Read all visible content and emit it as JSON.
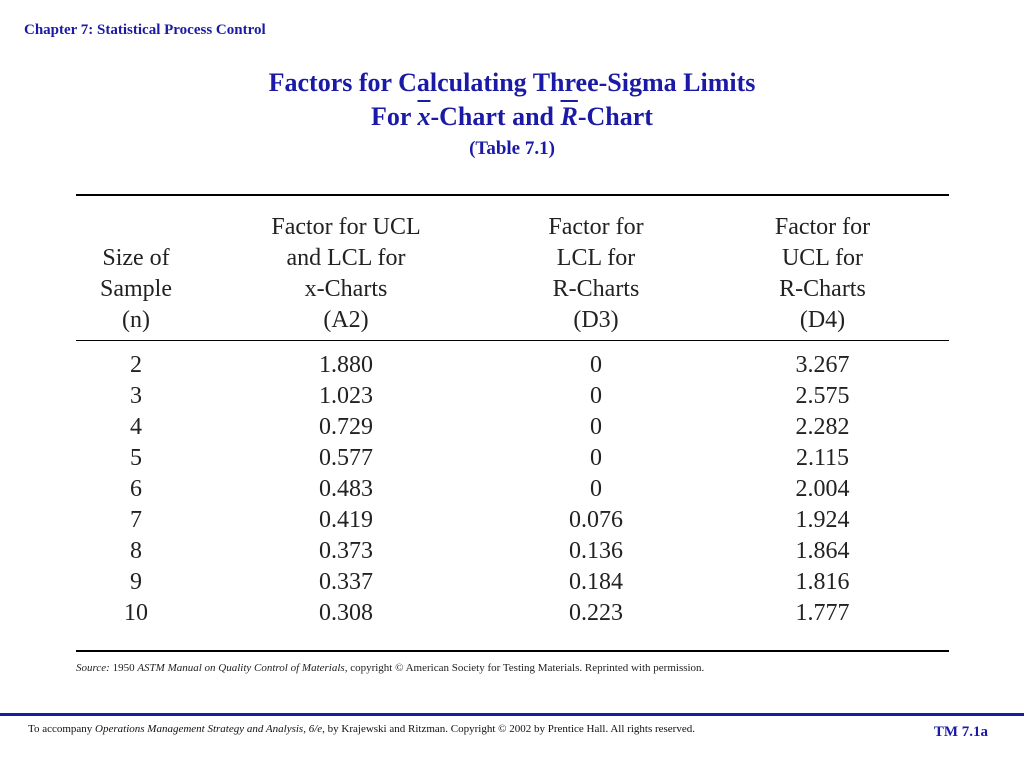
{
  "header": {
    "chapter": "Chapter 7: Statistical Process Control",
    "title_line1": "Factors for Calculating Three-Sigma Limits",
    "title_for": "For ",
    "xbar": "x",
    "title_mid": "-Chart and ",
    "rbar": "R",
    "title_end": "-Chart",
    "table_ref": "(Table 7.1)"
  },
  "table": {
    "headers": [
      [
        "Size of",
        "Sample",
        "(n)"
      ],
      [
        "Factor for UCL",
        "and LCL for",
        "x-Charts",
        "(A2)"
      ],
      [
        "Factor for",
        "LCL for",
        "R-Charts",
        "(D3)"
      ],
      [
        "Factor for",
        "UCL for",
        "R-Charts",
        "(D4)"
      ]
    ],
    "rows": [
      [
        "2",
        "1.880",
        "0",
        "3.267"
      ],
      [
        "3",
        "1.023",
        "0",
        "2.575"
      ],
      [
        "4",
        "0.729",
        "0",
        "2.282"
      ],
      [
        "5",
        "0.577",
        "0",
        "2.115"
      ],
      [
        "6",
        "0.483",
        "0",
        "2.004"
      ],
      [
        "7",
        "0.419",
        "0.076",
        "1.924"
      ],
      [
        "8",
        "0.373",
        "0.136",
        "1.864"
      ],
      [
        "9",
        "0.337",
        "0.184",
        "1.816"
      ],
      [
        "10",
        "0.308",
        "0.223",
        "1.777"
      ]
    ]
  },
  "source": {
    "label": "Source:",
    "text": " 1950 ",
    "work": "ASTM Manual on Quality Control of Materials",
    "rest": ", copyright © American Society for Testing Materials. Reprinted with permission."
  },
  "footer": {
    "prefix": "To accompany ",
    "book": "Operations Management Strategy and Analysis, 6/e",
    "suffix": ", by Krajewski and Ritzman. Copyright © 2002 by Prentice Hall. All rights reserved.",
    "slide_id": "TM 7.1a"
  },
  "colors": {
    "accent": "#1a1aa6",
    "text": "#222222"
  }
}
